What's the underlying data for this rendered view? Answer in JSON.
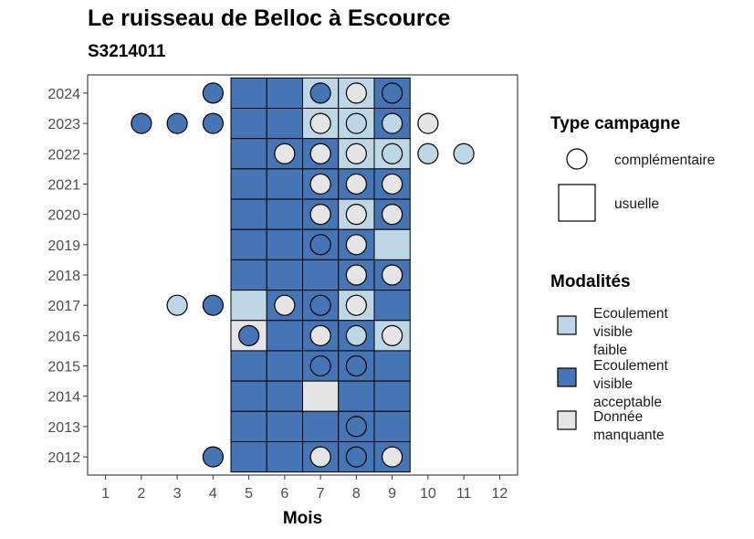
{
  "chart_data": {
    "type": "heatmap",
    "title": "Le ruisseau de Belloc à Escource",
    "subtitle": "S3214011",
    "xlabel": "Mois",
    "ylabel": "",
    "x_ticks": [
      1,
      2,
      3,
      4,
      5,
      6,
      7,
      8,
      9,
      10,
      11,
      12
    ],
    "y_ticks": [
      2012,
      2013,
      2014,
      2015,
      2016,
      2017,
      2018,
      2019,
      2020,
      2021,
      2022,
      2023,
      2024
    ],
    "xlim": [
      0.5,
      12.5
    ],
    "ylim": [
      2011.4,
      2024.6
    ],
    "grid": false,
    "legend_position": "right",
    "colors": {
      "Ecoulement visible faible": "#bdd7e7",
      "Ecoulement visible acceptable": "#4575b4",
      "Donnée manquante": "#e5e5e5"
    },
    "legends": [
      {
        "title": "Type campagne",
        "entries": [
          {
            "shape": "circle",
            "label": "complémentaire"
          },
          {
            "shape": "square",
            "label": "usuelle"
          }
        ]
      },
      {
        "title": "Modalités",
        "entries": [
          {
            "key": "Ecoulement visible faible",
            "lines": [
              "Ecoulement",
              "visible",
              "faible"
            ]
          },
          {
            "key": "Ecoulement visible acceptable",
            "lines": [
              "Ecoulement",
              "visible",
              "acceptable"
            ]
          },
          {
            "key": "Donnée manquante",
            "lines": [
              "Donnée",
              "manquante"
            ]
          }
        ]
      }
    ],
    "tiles": [
      {
        "year": 2024,
        "month": 5,
        "modalite": "Ecoulement visible acceptable"
      },
      {
        "year": 2024,
        "month": 6,
        "modalite": "Ecoulement visible acceptable"
      },
      {
        "year": 2024,
        "month": 7,
        "modalite": "Ecoulement visible faible"
      },
      {
        "year": 2024,
        "month": 8,
        "modalite": "Ecoulement visible faible"
      },
      {
        "year": 2024,
        "month": 9,
        "modalite": "Ecoulement visible acceptable"
      },
      {
        "year": 2023,
        "month": 5,
        "modalite": "Ecoulement visible acceptable"
      },
      {
        "year": 2023,
        "month": 6,
        "modalite": "Ecoulement visible acceptable"
      },
      {
        "year": 2023,
        "month": 7,
        "modalite": "Ecoulement visible faible"
      },
      {
        "year": 2023,
        "month": 8,
        "modalite": "Ecoulement visible faible"
      },
      {
        "year": 2023,
        "month": 9,
        "modalite": "Ecoulement visible acceptable"
      },
      {
        "year": 2022,
        "month": 5,
        "modalite": "Ecoulement visible acceptable"
      },
      {
        "year": 2022,
        "month": 6,
        "modalite": "Ecoulement visible acceptable"
      },
      {
        "year": 2022,
        "month": 7,
        "modalite": "Ecoulement visible acceptable"
      },
      {
        "year": 2022,
        "month": 8,
        "modalite": "Ecoulement visible faible"
      },
      {
        "year": 2022,
        "month": 9,
        "modalite": "Ecoulement visible faible"
      },
      {
        "year": 2021,
        "month": 5,
        "modalite": "Ecoulement visible acceptable"
      },
      {
        "year": 2021,
        "month": 6,
        "modalite": "Ecoulement visible acceptable"
      },
      {
        "year": 2021,
        "month": 7,
        "modalite": "Ecoulement visible acceptable"
      },
      {
        "year": 2021,
        "month": 8,
        "modalite": "Ecoulement visible acceptable"
      },
      {
        "year": 2021,
        "month": 9,
        "modalite": "Ecoulement visible acceptable"
      },
      {
        "year": 2020,
        "month": 5,
        "modalite": "Ecoulement visible acceptable"
      },
      {
        "year": 2020,
        "month": 6,
        "modalite": "Ecoulement visible acceptable"
      },
      {
        "year": 2020,
        "month": 7,
        "modalite": "Ecoulement visible acceptable"
      },
      {
        "year": 2020,
        "month": 8,
        "modalite": "Ecoulement visible faible"
      },
      {
        "year": 2020,
        "month": 9,
        "modalite": "Ecoulement visible acceptable"
      },
      {
        "year": 2019,
        "month": 5,
        "modalite": "Ecoulement visible acceptable"
      },
      {
        "year": 2019,
        "month": 6,
        "modalite": "Ecoulement visible acceptable"
      },
      {
        "year": 2019,
        "month": 7,
        "modalite": "Ecoulement visible acceptable"
      },
      {
        "year": 2019,
        "month": 8,
        "modalite": "Ecoulement visible acceptable"
      },
      {
        "year": 2019,
        "month": 9,
        "modalite": "Ecoulement visible faible"
      },
      {
        "year": 2018,
        "month": 5,
        "modalite": "Ecoulement visible acceptable"
      },
      {
        "year": 2018,
        "month": 6,
        "modalite": "Ecoulement visible acceptable"
      },
      {
        "year": 2018,
        "month": 7,
        "modalite": "Ecoulement visible acceptable"
      },
      {
        "year": 2018,
        "month": 8,
        "modalite": "Ecoulement visible acceptable"
      },
      {
        "year": 2018,
        "month": 9,
        "modalite": "Ecoulement visible acceptable"
      },
      {
        "year": 2017,
        "month": 5,
        "modalite": "Ecoulement visible faible"
      },
      {
        "year": 2017,
        "month": 6,
        "modalite": "Ecoulement visible acceptable"
      },
      {
        "year": 2017,
        "month": 7,
        "modalite": "Ecoulement visible acceptable"
      },
      {
        "year": 2017,
        "month": 8,
        "modalite": "Ecoulement visible faible"
      },
      {
        "year": 2017,
        "month": 9,
        "modalite": "Ecoulement visible acceptable"
      },
      {
        "year": 2016,
        "month": 5,
        "modalite": "Donnée manquante"
      },
      {
        "year": 2016,
        "month": 6,
        "modalite": "Ecoulement visible acceptable"
      },
      {
        "year": 2016,
        "month": 7,
        "modalite": "Ecoulement visible acceptable"
      },
      {
        "year": 2016,
        "month": 8,
        "modalite": "Ecoulement visible acceptable"
      },
      {
        "year": 2016,
        "month": 9,
        "modalite": "Ecoulement visible faible"
      },
      {
        "year": 2015,
        "month": 5,
        "modalite": "Ecoulement visible acceptable"
      },
      {
        "year": 2015,
        "month": 6,
        "modalite": "Ecoulement visible acceptable"
      },
      {
        "year": 2015,
        "month": 7,
        "modalite": "Ecoulement visible acceptable"
      },
      {
        "year": 2015,
        "month": 8,
        "modalite": "Ecoulement visible acceptable"
      },
      {
        "year": 2015,
        "month": 9,
        "modalite": "Ecoulement visible acceptable"
      },
      {
        "year": 2014,
        "month": 5,
        "modalite": "Ecoulement visible acceptable"
      },
      {
        "year": 2014,
        "month": 6,
        "modalite": "Ecoulement visible acceptable"
      },
      {
        "year": 2014,
        "month": 7,
        "modalite": "Donnée manquante"
      },
      {
        "year": 2014,
        "month": 8,
        "modalite": "Ecoulement visible acceptable"
      },
      {
        "year": 2014,
        "month": 9,
        "modalite": "Ecoulement visible acceptable"
      },
      {
        "year": 2013,
        "month": 5,
        "modalite": "Ecoulement visible acceptable"
      },
      {
        "year": 2013,
        "month": 6,
        "modalite": "Ecoulement visible acceptable"
      },
      {
        "year": 2013,
        "month": 7,
        "modalite": "Ecoulement visible acceptable"
      },
      {
        "year": 2013,
        "month": 8,
        "modalite": "Ecoulement visible acceptable"
      },
      {
        "year": 2013,
        "month": 9,
        "modalite": "Ecoulement visible acceptable"
      },
      {
        "year": 2012,
        "month": 5,
        "modalite": "Ecoulement visible acceptable"
      },
      {
        "year": 2012,
        "month": 6,
        "modalite": "Ecoulement visible acceptable"
      },
      {
        "year": 2012,
        "month": 7,
        "modalite": "Ecoulement visible acceptable"
      },
      {
        "year": 2012,
        "month": 8,
        "modalite": "Ecoulement visible acceptable"
      },
      {
        "year": 2012,
        "month": 9,
        "modalite": "Ecoulement visible acceptable"
      }
    ],
    "points": [
      {
        "year": 2024,
        "month": 4,
        "modalite": "Ecoulement visible acceptable"
      },
      {
        "year": 2024,
        "month": 7,
        "modalite": "Ecoulement visible acceptable"
      },
      {
        "year": 2024,
        "month": 8,
        "modalite": "Donnée manquante"
      },
      {
        "year": 2024,
        "month": 9,
        "modalite": "Ecoulement visible acceptable"
      },
      {
        "year": 2023,
        "month": 2,
        "modalite": "Ecoulement visible acceptable"
      },
      {
        "year": 2023,
        "month": 3,
        "modalite": "Ecoulement visible acceptable"
      },
      {
        "year": 2023,
        "month": 4,
        "modalite": "Ecoulement visible acceptable"
      },
      {
        "year": 2023,
        "month": 7,
        "modalite": "Donnée manquante"
      },
      {
        "year": 2023,
        "month": 8,
        "modalite": "Ecoulement visible faible"
      },
      {
        "year": 2023,
        "month": 9,
        "modalite": "Ecoulement visible faible"
      },
      {
        "year": 2023,
        "month": 10,
        "modalite": "Donnée manquante"
      },
      {
        "year": 2022,
        "month": 6,
        "modalite": "Donnée manquante"
      },
      {
        "year": 2022,
        "month": 7,
        "modalite": "Donnée manquante"
      },
      {
        "year": 2022,
        "month": 8,
        "modalite": "Donnée manquante"
      },
      {
        "year": 2022,
        "month": 9,
        "modalite": "Ecoulement visible faible"
      },
      {
        "year": 2022,
        "month": 10,
        "modalite": "Ecoulement visible faible"
      },
      {
        "year": 2022,
        "month": 11,
        "modalite": "Ecoulement visible faible"
      },
      {
        "year": 2021,
        "month": 7,
        "modalite": "Donnée manquante"
      },
      {
        "year": 2021,
        "month": 8,
        "modalite": "Donnée manquante"
      },
      {
        "year": 2021,
        "month": 9,
        "modalite": "Donnée manquante"
      },
      {
        "year": 2020,
        "month": 7,
        "modalite": "Donnée manquante"
      },
      {
        "year": 2020,
        "month": 8,
        "modalite": "Donnée manquante"
      },
      {
        "year": 2020,
        "month": 9,
        "modalite": "Donnée manquante"
      },
      {
        "year": 2019,
        "month": 7,
        "modalite": "Ecoulement visible acceptable"
      },
      {
        "year": 2019,
        "month": 8,
        "modalite": "Donnée manquante"
      },
      {
        "year": 2018,
        "month": 8,
        "modalite": "Donnée manquante"
      },
      {
        "year": 2018,
        "month": 9,
        "modalite": "Donnée manquante"
      },
      {
        "year": 2017,
        "month": 3,
        "modalite": "Ecoulement visible faible"
      },
      {
        "year": 2017,
        "month": 4,
        "modalite": "Ecoulement visible acceptable"
      },
      {
        "year": 2017,
        "month": 6,
        "modalite": "Donnée manquante"
      },
      {
        "year": 2017,
        "month": 7,
        "modalite": "Ecoulement visible acceptable"
      },
      {
        "year": 2017,
        "month": 8,
        "modalite": "Donnée manquante"
      },
      {
        "year": 2016,
        "month": 5,
        "modalite": "Ecoulement visible acceptable"
      },
      {
        "year": 2016,
        "month": 7,
        "modalite": "Donnée manquante"
      },
      {
        "year": 2016,
        "month": 8,
        "modalite": "Ecoulement visible faible"
      },
      {
        "year": 2016,
        "month": 9,
        "modalite": "Donnée manquante"
      },
      {
        "year": 2015,
        "month": 7,
        "modalite": "Ecoulement visible acceptable"
      },
      {
        "year": 2015,
        "month": 8,
        "modalite": "Ecoulement visible acceptable"
      },
      {
        "year": 2013,
        "month": 8,
        "modalite": "Ecoulement visible acceptable"
      },
      {
        "year": 2012,
        "month": 4,
        "modalite": "Ecoulement visible acceptable"
      },
      {
        "year": 2012,
        "month": 7,
        "modalite": "Donnée manquante"
      },
      {
        "year": 2012,
        "month": 8,
        "modalite": "Ecoulement visible acceptable"
      },
      {
        "year": 2012,
        "month": 9,
        "modalite": "Donnée manquante"
      }
    ]
  }
}
